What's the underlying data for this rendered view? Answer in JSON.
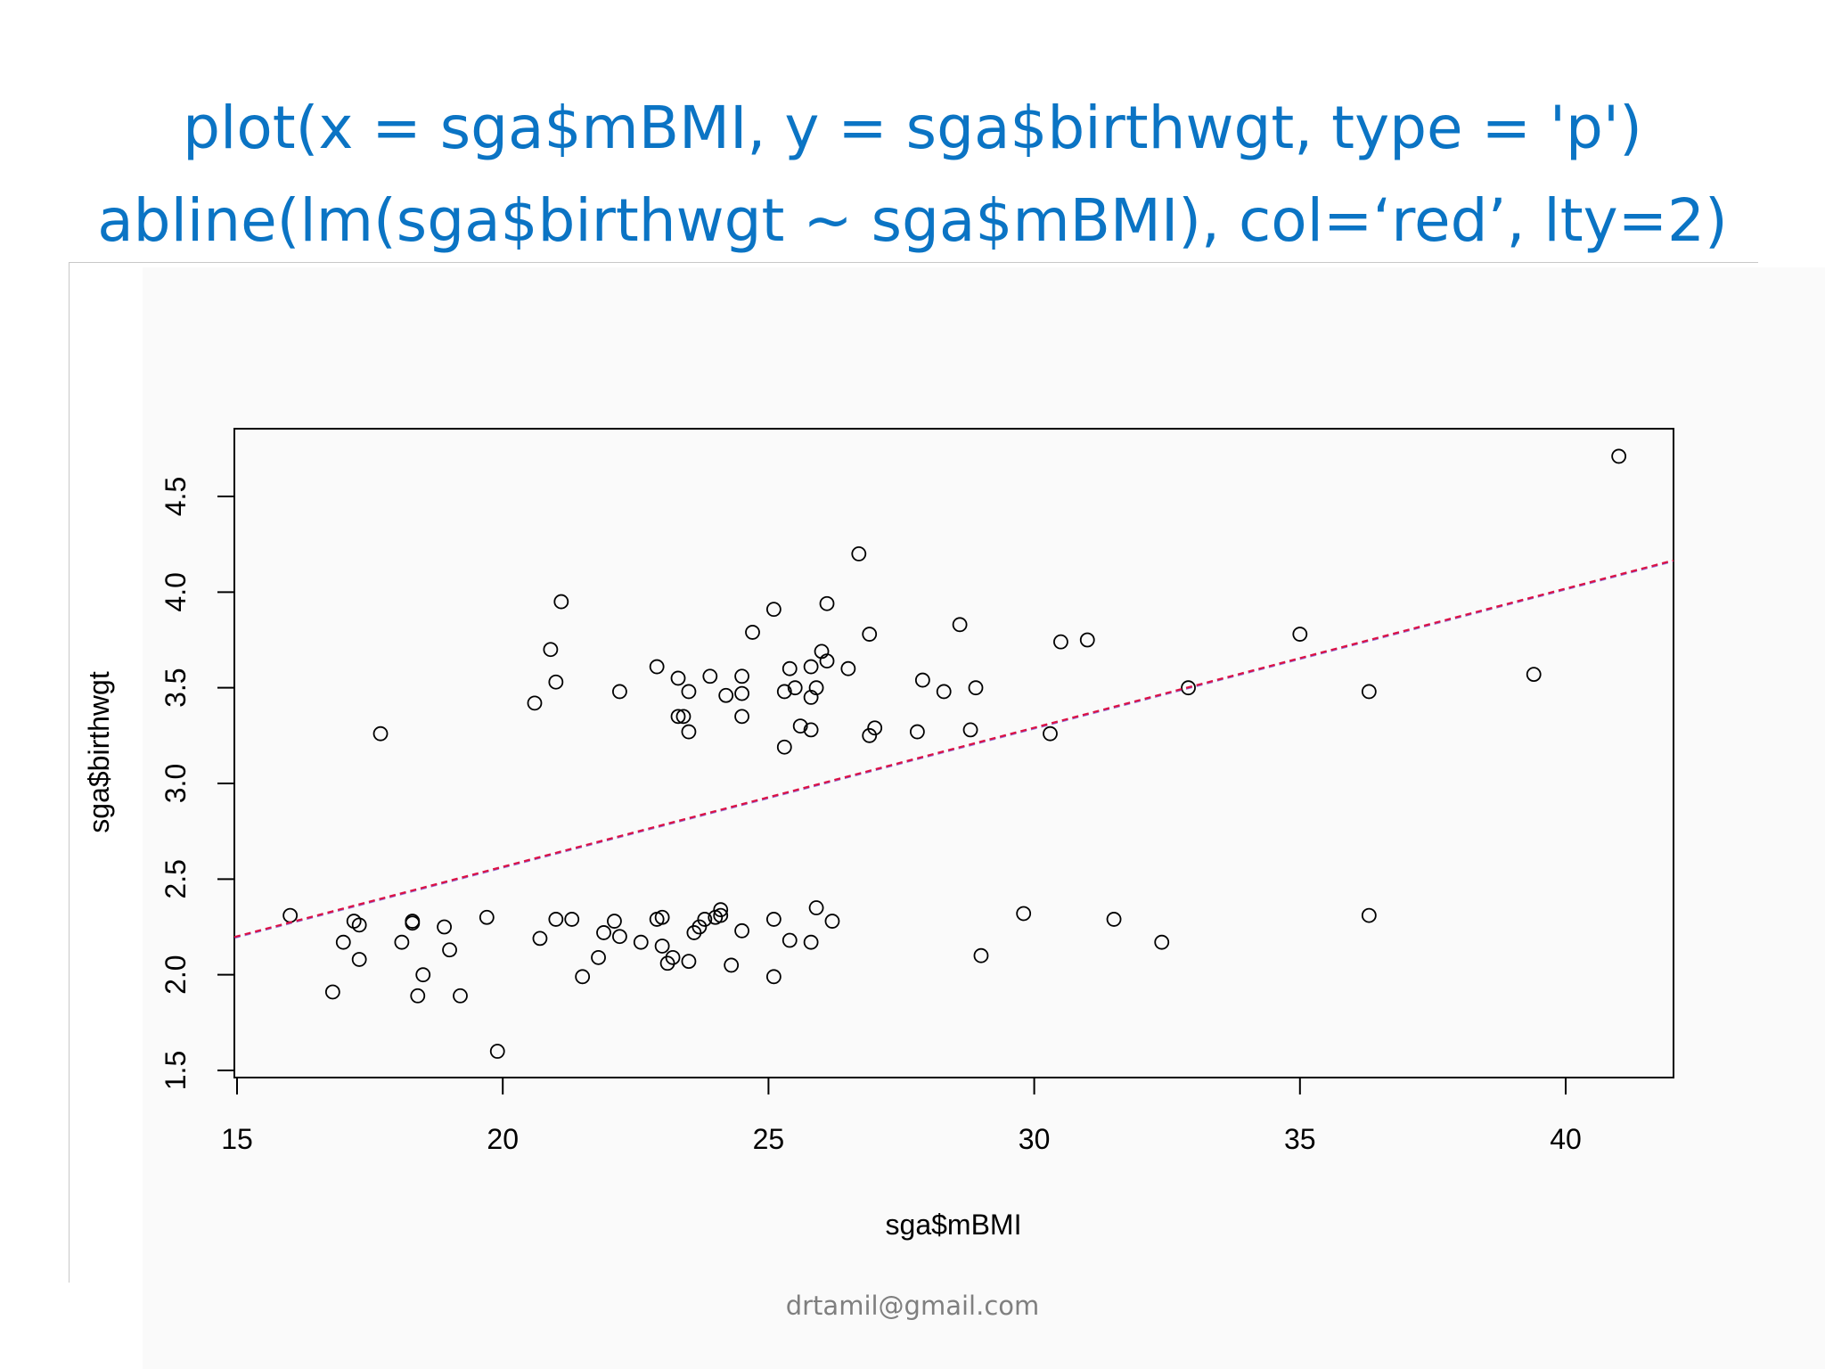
{
  "slide": {
    "title_line1": "plot(x = sga$mBMI, y = sga$birthwgt, type = 'p')",
    "title_line2": "abline(lm(sga$birthwgt ~ sga$mBMI), col=‘red’, lty=2)",
    "footer": "drtamil@gmail.com"
  },
  "chart_data": {
    "type": "scatter",
    "title": "",
    "xlabel": "sga$mBMI",
    "ylabel": "sga$birthwgt",
    "xlim": [
      15,
      42
    ],
    "ylim": [
      1.5,
      4.85
    ],
    "x_ticks": [
      15,
      20,
      25,
      30,
      35,
      40
    ],
    "y_ticks": [
      1.5,
      2.0,
      2.5,
      3.0,
      3.5,
      4.0,
      4.5
    ],
    "x_tick_labels": [
      "15",
      "20",
      "25",
      "30",
      "35",
      "40"
    ],
    "y_tick_labels": [
      "1.5",
      "2.0",
      "2.5",
      "3.0",
      "3.5",
      "4.0",
      "4.5"
    ],
    "grid": false,
    "point_color": "#000000",
    "regression_line": {
      "intercept": 1.11,
      "slope": 0.0727,
      "color": "#dd1144",
      "style": "dashed"
    },
    "points": [
      [
        16.0,
        2.31
      ],
      [
        16.8,
        1.91
      ],
      [
        17.0,
        2.17
      ],
      [
        17.2,
        2.28
      ],
      [
        17.3,
        2.26
      ],
      [
        17.3,
        2.08
      ],
      [
        17.7,
        3.26
      ],
      [
        18.1,
        2.17
      ],
      [
        18.3,
        2.28
      ],
      [
        18.3,
        2.27
      ],
      [
        18.4,
        1.89
      ],
      [
        18.5,
        2.0
      ],
      [
        18.9,
        2.25
      ],
      [
        19.0,
        2.13
      ],
      [
        19.2,
        1.89
      ],
      [
        19.7,
        2.3
      ],
      [
        19.9,
        1.6
      ],
      [
        20.6,
        3.42
      ],
      [
        20.7,
        2.19
      ],
      [
        20.9,
        3.7
      ],
      [
        21.0,
        3.53
      ],
      [
        21.0,
        2.29
      ],
      [
        21.1,
        3.95
      ],
      [
        21.3,
        2.29
      ],
      [
        21.5,
        1.99
      ],
      [
        21.8,
        2.09
      ],
      [
        21.9,
        2.22
      ],
      [
        22.1,
        2.28
      ],
      [
        22.2,
        3.48
      ],
      [
        22.2,
        2.2
      ],
      [
        22.6,
        2.17
      ],
      [
        22.9,
        2.29
      ],
      [
        22.9,
        3.61
      ],
      [
        23.0,
        2.3
      ],
      [
        23.0,
        2.15
      ],
      [
        23.1,
        2.06
      ],
      [
        23.2,
        2.09
      ],
      [
        23.3,
        3.55
      ],
      [
        23.3,
        3.35
      ],
      [
        23.4,
        3.35
      ],
      [
        23.5,
        3.48
      ],
      [
        23.5,
        3.27
      ],
      [
        23.5,
        2.07
      ],
      [
        23.6,
        2.22
      ],
      [
        23.7,
        2.25
      ],
      [
        23.8,
        2.29
      ],
      [
        23.9,
        3.56
      ],
      [
        24.0,
        2.3
      ],
      [
        24.1,
        2.34
      ],
      [
        24.1,
        2.31
      ],
      [
        24.2,
        3.46
      ],
      [
        24.3,
        2.05
      ],
      [
        24.5,
        3.56
      ],
      [
        24.5,
        3.47
      ],
      [
        24.5,
        3.35
      ],
      [
        24.5,
        2.23
      ],
      [
        24.7,
        3.79
      ],
      [
        25.1,
        3.91
      ],
      [
        25.1,
        2.29
      ],
      [
        25.1,
        1.99
      ],
      [
        25.3,
        3.48
      ],
      [
        25.3,
        3.19
      ],
      [
        25.4,
        3.6
      ],
      [
        25.4,
        2.18
      ],
      [
        25.5,
        3.5
      ],
      [
        25.6,
        3.3
      ],
      [
        25.8,
        3.45
      ],
      [
        25.8,
        3.28
      ],
      [
        25.8,
        2.17
      ],
      [
        25.8,
        3.61
      ],
      [
        25.9,
        3.5
      ],
      [
        25.9,
        2.35
      ],
      [
        26.0,
        3.69
      ],
      [
        26.1,
        3.64
      ],
      [
        26.1,
        3.94
      ],
      [
        26.2,
        2.28
      ],
      [
        26.5,
        3.6
      ],
      [
        26.7,
        4.2
      ],
      [
        26.9,
        3.78
      ],
      [
        26.9,
        3.25
      ],
      [
        27.0,
        3.29
      ],
      [
        27.8,
        3.27
      ],
      [
        27.9,
        3.54
      ],
      [
        28.3,
        3.48
      ],
      [
        28.6,
        3.83
      ],
      [
        28.8,
        3.28
      ],
      [
        28.9,
        3.5
      ],
      [
        29.0,
        2.1
      ],
      [
        29.8,
        2.32
      ],
      [
        30.3,
        3.26
      ],
      [
        30.5,
        3.74
      ],
      [
        31.0,
        3.75
      ],
      [
        31.5,
        2.29
      ],
      [
        32.4,
        2.17
      ],
      [
        32.9,
        3.5
      ],
      [
        35.0,
        3.78
      ],
      [
        36.3,
        3.48
      ],
      [
        36.3,
        2.31
      ],
      [
        39.4,
        3.57
      ],
      [
        41.0,
        4.71
      ]
    ]
  }
}
